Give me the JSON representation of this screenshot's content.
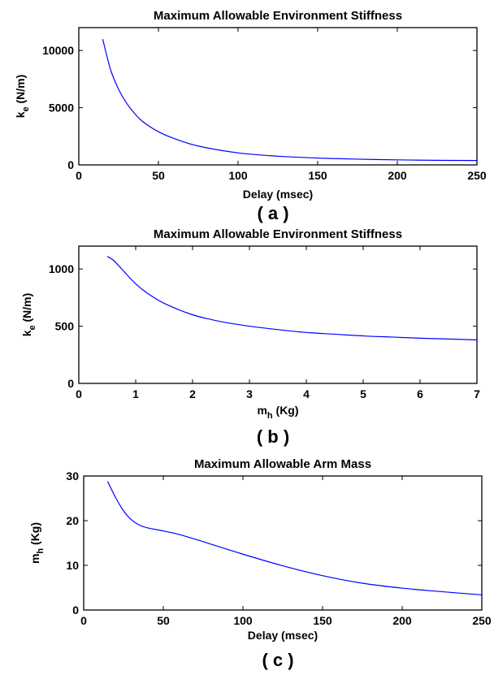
{
  "chart_data": [
    {
      "type": "line",
      "caption": "( a )",
      "title": "Maximum Allowable Environment Stiffness",
      "xlabel": "Delay (msec)",
      "ylabel_main": "k",
      "ylabel_sub": "e",
      "ylabel_rest": " (N/m)",
      "xlim": [
        0,
        250
      ],
      "ylim": [
        0,
        12000
      ],
      "xticks": [
        0,
        50,
        100,
        150,
        200,
        250
      ],
      "xtick_labels": [
        "0",
        "50",
        "100",
        "150",
        "200",
        "250"
      ],
      "yticks": [
        0,
        5000,
        10000
      ],
      "ytick_labels": [
        "0",
        "5000",
        "10000"
      ],
      "grid": false,
      "line_color": "#0000ff",
      "x": [
        15,
        20,
        25,
        30,
        35,
        40,
        50,
        60,
        75,
        100,
        125,
        150,
        175,
        200,
        225,
        250
      ],
      "y": [
        11000,
        8300,
        6600,
        5400,
        4500,
        3800,
        2900,
        2300,
        1650,
        1050,
        760,
        600,
        500,
        440,
        400,
        380
      ]
    },
    {
      "type": "line",
      "caption": "( b )",
      "title": "Maximum Allowable Environment Stiffness",
      "xlabel_main": "m",
      "xlabel_sub": "h",
      "xlabel_rest": " (Kg)",
      "ylabel_main": "k",
      "ylabel_sub": "e",
      "ylabel_rest": " (N/m)",
      "xlim": [
        0,
        7
      ],
      "ylim": [
        0,
        1200
      ],
      "xticks": [
        0,
        1,
        2,
        3,
        4,
        5,
        6,
        7
      ],
      "xtick_labels": [
        "0",
        "1",
        "2",
        "3",
        "4",
        "5",
        "6",
        "7"
      ],
      "yticks": [
        0,
        500,
        1000
      ],
      "ytick_labels": [
        "0",
        "500",
        "1000"
      ],
      "grid": false,
      "line_color": "#0000ff",
      "x": [
        0.5,
        0.6,
        0.7,
        0.8,
        1.0,
        1.2,
        1.5,
        2.0,
        2.5,
        3.0,
        3.5,
        4.0,
        4.5,
        5.0,
        5.5,
        6.0,
        6.5,
        7.0
      ],
      "y": [
        1110,
        1080,
        1030,
        975,
        870,
        790,
        700,
        600,
        540,
        500,
        470,
        445,
        430,
        415,
        405,
        395,
        388,
        380
      ]
    },
    {
      "type": "line",
      "caption": "( c )",
      "title": "Maximum Allowable Arm Mass",
      "xlabel": "Delay (msec)",
      "ylabel_main": "m",
      "ylabel_sub": "h",
      "ylabel_rest": " (Kg)",
      "xlim": [
        0,
        250
      ],
      "ylim": [
        0,
        30
      ],
      "xticks": [
        0,
        50,
        100,
        150,
        200,
        250
      ],
      "xtick_labels": [
        "0",
        "50",
        "100",
        "150",
        "200",
        "250"
      ],
      "yticks": [
        0,
        10,
        20,
        30
      ],
      "ytick_labels": [
        "0",
        "10",
        "20",
        "30"
      ],
      "grid": false,
      "line_color": "#0000ff",
      "x": [
        15,
        20,
        25,
        30,
        35,
        40,
        50,
        60,
        75,
        100,
        125,
        150,
        175,
        200,
        225,
        250
      ],
      "y": [
        28.8,
        25.2,
        22.2,
        20.2,
        19.0,
        18.4,
        17.7,
        16.9,
        15.3,
        12.5,
        9.9,
        7.7,
        6.0,
        4.9,
        4.1,
        3.4
      ]
    }
  ]
}
